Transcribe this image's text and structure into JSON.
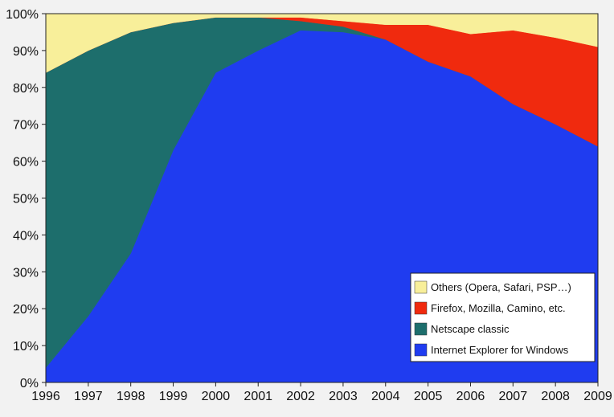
{
  "chart_data": {
    "type": "area",
    "stacked": true,
    "title": "",
    "xlabel": "",
    "ylabel": "",
    "x": [
      "1996",
      "1997",
      "1998",
      "1999",
      "2000",
      "2001",
      "2002",
      "2003",
      "2004",
      "2005",
      "2006",
      "2007",
      "2008",
      "2009"
    ],
    "ylim": [
      0,
      100
    ],
    "yticks": [
      "0%",
      "10%",
      "20%",
      "30%",
      "40%",
      "50%",
      "60%",
      "70%",
      "80%",
      "90%",
      "100%"
    ],
    "grid": false,
    "legend_position": "bottom-right",
    "series": [
      {
        "name": "Internet Explorer for Windows",
        "color": "#1f3cf0",
        "values": [
          4,
          18,
          35,
          63,
          84,
          90,
          95.5,
          95,
          93,
          87,
          83,
          75.5,
          70,
          64
        ]
      },
      {
        "name": "Netscape classic",
        "color": "#1d6e6c",
        "values": [
          80,
          72,
          60,
          34.5,
          15,
          9,
          2.5,
          1.5,
          0,
          0,
          0,
          0,
          0,
          0
        ]
      },
      {
        "name": "Firefox, Mozilla, Camino, etc.",
        "color": "#f02a0e",
        "values": [
          0,
          0,
          0,
          0,
          0,
          0,
          1,
          1.5,
          4,
          10,
          11.5,
          20,
          23.5,
          27
        ]
      },
      {
        "name": "Others (Opera, Safari, PSP…)",
        "color": "#f8ef9a",
        "values": [
          16,
          10,
          5,
          2.5,
          1,
          1,
          1,
          2,
          3,
          3,
          5.5,
          4.5,
          6.5,
          9
        ]
      }
    ],
    "legend_order": [
      "Others (Opera, Safari, PSP…)",
      "Firefox, Mozilla, Camino, etc.",
      "Netscape classic",
      "Internet Explorer for Windows"
    ]
  }
}
